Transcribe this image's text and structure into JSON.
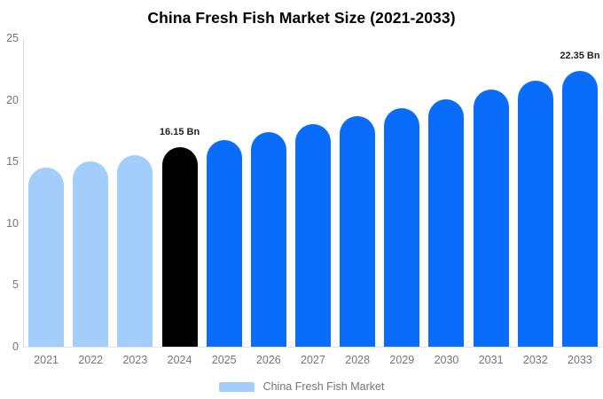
{
  "header": {
    "title": "China Fresh Fish Market Size (2021-2033)"
  },
  "colors": {
    "light_blue": "#A3CDFB",
    "primary_blue": "#0A6CFB",
    "highlight_black": "#000000",
    "axis_line": "#DEDEDE",
    "tick_text": "#757575",
    "annotation_text": "#222222",
    "title_text": "#000000",
    "background": "#FFFFFF"
  },
  "chart_data": {
    "type": "bar",
    "title": "China Fresh Fish Market Size (2021-2033)",
    "categories": [
      "2021",
      "2022",
      "2023",
      "2024",
      "2025",
      "2026",
      "2027",
      "2028",
      "2029",
      "2030",
      "2031",
      "2032",
      "2033"
    ],
    "values": [
      14.5,
      15.0,
      15.55,
      16.15,
      16.74,
      17.36,
      18.0,
      18.66,
      19.35,
      20.06,
      20.8,
      21.57,
      22.35
    ],
    "point_colors": [
      "#A3CDFB",
      "#A3CDFB",
      "#A3CDFB",
      "#000000",
      "#0A6CFB",
      "#0A6CFB",
      "#0A6CFB",
      "#0A6CFB",
      "#0A6CFB",
      "#0A6CFB",
      "#0A6CFB",
      "#0A6CFB",
      "#0A6CFB"
    ],
    "annotations": [
      {
        "category": "2024",
        "text": "16.15 Bn"
      },
      {
        "category": "2033",
        "text": "22.35 Bn"
      }
    ],
    "unit": "Bn",
    "xlabel": "",
    "ylabel": "",
    "ylim": [
      0,
      25
    ],
    "yticks": [
      0,
      5,
      10,
      15,
      20,
      25
    ],
    "grid": false,
    "legend": {
      "text": "China Fresh Fish Market",
      "position": "bottom",
      "swatch_color": "#A3CDFB"
    }
  }
}
